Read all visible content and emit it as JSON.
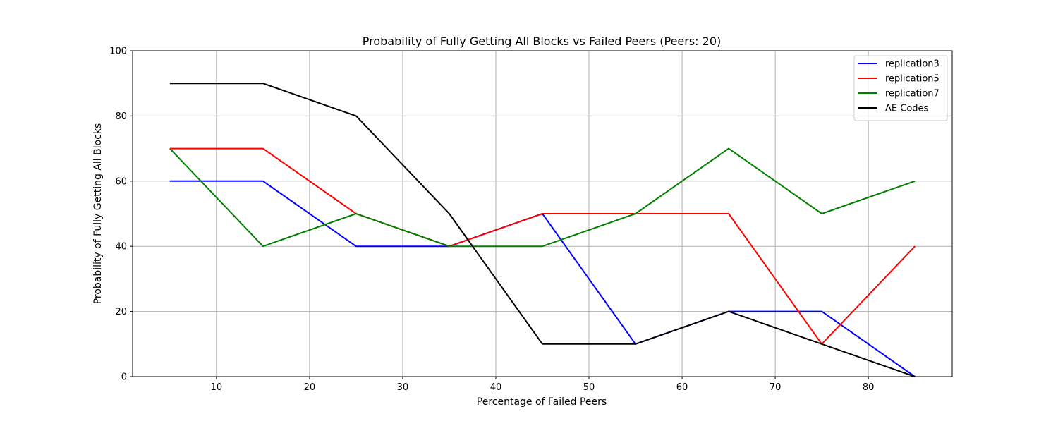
{
  "chart_data": {
    "type": "line",
    "title": "Probability of Fully Getting All Blocks vs Failed Peers (Peers: 20)",
    "xlabel": "Percentage of Failed Peers",
    "ylabel": "Probability of Fully Getting All Blocks",
    "xlim": [
      1,
      89
    ],
    "ylim": [
      0,
      100
    ],
    "xticks": [
      10,
      20,
      30,
      40,
      50,
      60,
      70,
      80
    ],
    "yticks": [
      0,
      20,
      40,
      60,
      80,
      100
    ],
    "grid": true,
    "legend_position": "top-right",
    "x": [
      5,
      15,
      25,
      35,
      45,
      55,
      65,
      75,
      85
    ],
    "series": [
      {
        "name": "replication3",
        "color": "#0000ff",
        "values": [
          60,
          60,
          40,
          40,
          50,
          10,
          20,
          20,
          0
        ]
      },
      {
        "name": "replication5",
        "color": "#ff0000",
        "values": [
          70,
          70,
          50,
          40,
          50,
          50,
          50,
          10,
          40
        ]
      },
      {
        "name": "replication7",
        "color": "#008000",
        "values": [
          70,
          40,
          50,
          40,
          40,
          50,
          70,
          50,
          60
        ]
      },
      {
        "name": "AE Codes",
        "color": "#000000",
        "values": [
          90,
          90,
          80,
          50,
          10,
          10,
          20,
          10,
          0
        ]
      }
    ]
  }
}
